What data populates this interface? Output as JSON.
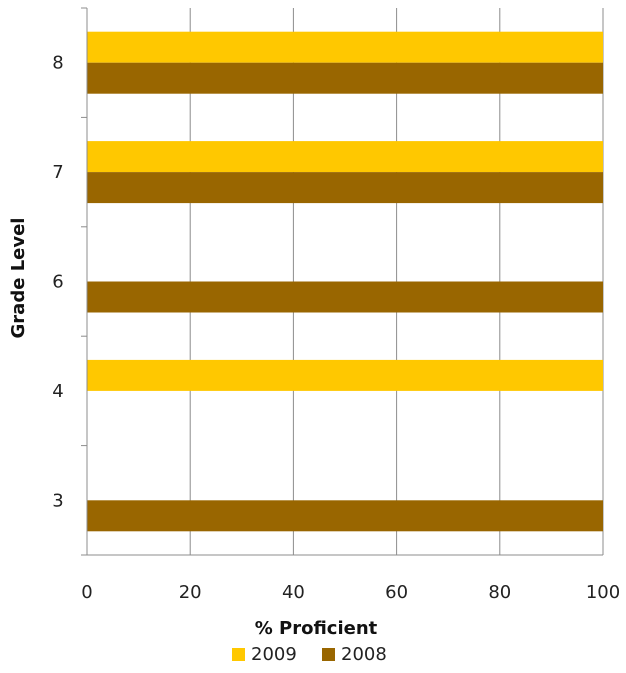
{
  "chart_data": {
    "type": "bar",
    "orientation": "horizontal",
    "categories": [
      "3",
      "4",
      "6",
      "7",
      "8"
    ],
    "series": [
      {
        "name": "2009",
        "values": [
          null,
          100,
          null,
          100,
          100
        ],
        "color": "#FFC800"
      },
      {
        "name": "2008",
        "values": [
          100,
          null,
          100,
          100,
          100
        ],
        "color": "#996600"
      }
    ],
    "xlabel": "% Proficient",
    "ylabel": "Grade Level",
    "xlim": [
      0,
      100
    ],
    "xticks": [
      "0",
      "20",
      "40",
      "60",
      "80",
      "100"
    ],
    "grid": true,
    "legend": "bottom"
  }
}
